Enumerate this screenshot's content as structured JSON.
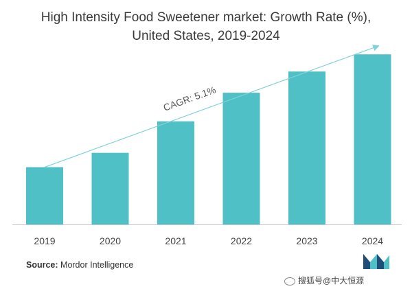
{
  "title_line1": "High Intensity Food Sweetener market: Growth Rate (%),",
  "title_line2": "United States, 2019-2024",
  "source_label": "Source:",
  "source_name": "Mordor Intelligence",
  "watermark_text": "搜狐号@中大恒源",
  "colors": {
    "bar": "#4fc1c6",
    "trend": "#7fd3d6",
    "axis": "#c8c8c8",
    "title": "#3a3a3a",
    "logo_dark": "#1f4e79",
    "logo_teal": "#4fc1c6"
  },
  "icons": [
    "mordor-logo-icon",
    "weibo-icon"
  ],
  "chart_data": {
    "type": "bar",
    "title": "High Intensity Food Sweetener market: Growth Rate (%), United States, 2019-2024",
    "categories": [
      "2019",
      "2020",
      "2021",
      "2022",
      "2023",
      "2024"
    ],
    "values": [
      1.0,
      1.25,
      1.8,
      2.3,
      2.67,
      2.97
    ],
    "ylim": [
      0,
      3.2
    ],
    "grid": false,
    "legend": "none",
    "annotation": "CAGR: 5.1%",
    "xlabel": "",
    "ylabel": ""
  }
}
